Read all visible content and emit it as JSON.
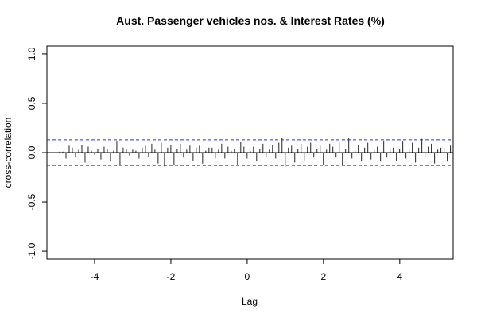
{
  "chart_data": {
    "type": "bar",
    "title": "Aust. Passenger vehicles nos. & Interest Rates (%)",
    "xlabel": "Lag",
    "ylabel": "cross-correlation",
    "xlim": [
      -5.25,
      5.4
    ],
    "ylim": [
      -1.08,
      1.08
    ],
    "x_ticks": [
      -4,
      -2,
      0,
      2,
      4
    ],
    "y_ticks": [
      -1.0,
      -0.5,
      0.0,
      0.5,
      1.0
    ],
    "x_tick_labels": [
      "-4",
      "-2",
      "0",
      "2",
      "4"
    ],
    "y_tick_labels": [
      "-1.0",
      "-0.5",
      "0.0",
      "0.5",
      "1.0"
    ],
    "ci_bound": 0.13,
    "lag_step": 0.0833,
    "lag_start": -4.9167,
    "values": [
      0.01,
      0.01,
      -0.06,
      0.07,
      0.05,
      -0.05,
      0.03,
      0.08,
      -0.1,
      0.06,
      0.02,
      -0.02,
      0.04,
      -0.07,
      0.06,
      0.04,
      -0.09,
      0.02,
      0.12,
      -0.13,
      0.05,
      0.04,
      -0.03,
      0.03,
      0.02,
      -0.06,
      0.05,
      0.07,
      -0.04,
      0.09,
      0.03,
      -0.11,
      0.1,
      -0.14,
      0.05,
      0.08,
      -0.12,
      0.04,
      0.09,
      -0.05,
      0.03,
      0.07,
      -0.08,
      0.05,
      0.07,
      -0.11,
      0.02,
      0.05,
      0.05,
      -0.06,
      0.03,
      0.09,
      -0.06,
      0.06,
      0.02,
      0.04,
      -0.12,
      0.11,
      0.06,
      -0.06,
      0.02,
      0.06,
      -0.09,
      0.04,
      0.09,
      -0.04,
      0.03,
      0.08,
      -0.06,
      0.1,
      0.15,
      -0.14,
      0.05,
      0.07,
      -0.1,
      0.04,
      0.09,
      -0.08,
      0.06,
      0.1,
      -0.05,
      0.04,
      0.07,
      -0.12,
      0.03,
      0.09,
      0.06,
      -0.05,
      0.1,
      -0.13,
      0.04,
      0.15,
      -0.06,
      0.02,
      0.08,
      -0.09,
      0.05,
      0.1,
      -0.07,
      0.03,
      0.06,
      -0.09,
      0.12,
      -0.05,
      0.04,
      0.05,
      -0.08,
      0.04,
      0.12,
      -0.06,
      0.03,
      0.1,
      -0.1,
      0.05,
      0.14,
      -0.04,
      0.06,
      0.09,
      -0.11,
      0.03,
      0.05,
      0.05,
      -0.09,
      0.07
    ]
  }
}
